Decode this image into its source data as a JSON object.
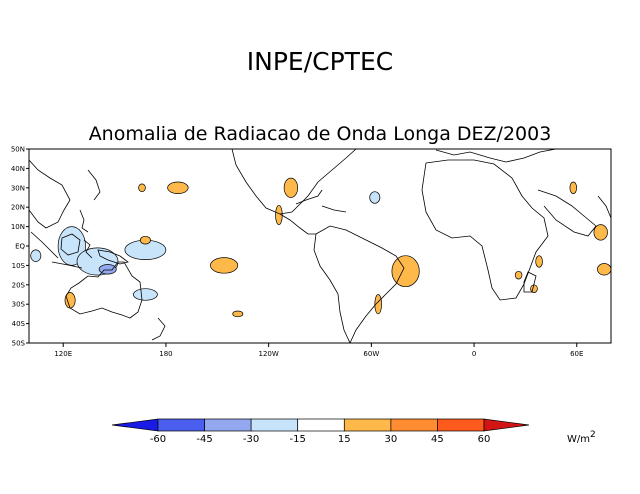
{
  "chart_data": {
    "type": "heatmap",
    "header": "INPE/CPTEC",
    "title": "Anomalia de Radiacao de Onda Longa DEZ/2003",
    "x_ticks": [
      "120E",
      "180",
      "120W",
      "60W",
      "0",
      "60E"
    ],
    "x_tick_lon": [
      120,
      180,
      240,
      300,
      360,
      420
    ],
    "y_ticks": [
      "50N",
      "40N",
      "30N",
      "20N",
      "10N",
      "EQ",
      "10S",
      "20S",
      "30S",
      "40S",
      "50S"
    ],
    "y_tick_lat": [
      50,
      40,
      30,
      20,
      10,
      0,
      -10,
      -20,
      -30,
      -40,
      -50
    ],
    "lon_range": [
      100,
      440
    ],
    "lat_range": [
      -50,
      50
    ],
    "colorbar": {
      "levels": [
        -60,
        -45,
        -30,
        -15,
        15,
        30,
        45,
        60
      ],
      "labels": [
        "-60",
        "-45",
        "-30",
        "-15",
        "15",
        "30",
        "45",
        "60"
      ],
      "colors": [
        "#1a1ae6",
        "#4a5ef0",
        "#94a8f0",
        "#c8e4fa",
        "#ffffff",
        "#ffb84a",
        "#ff8c30",
        "#ff5a1e",
        "#d21414"
      ],
      "unit": "W/m",
      "unit_exp": "2"
    },
    "anomalies": [
      {
        "id": "indonesia-neg-1",
        "lon": 125,
        "lat": 0,
        "rlon": 8,
        "rlat": 10,
        "value": -20
      },
      {
        "id": "indonesia-neg-2",
        "lon": 140,
        "lat": -8,
        "rlon": 12,
        "rlat": 7,
        "value": -25
      },
      {
        "id": "png-strong-neg",
        "lon": 146,
        "lat": -12,
        "rlon": 5,
        "rlat": 2.5,
        "value": -40
      },
      {
        "id": "pacific-neg-1",
        "lon": 168,
        "lat": -2,
        "rlon": 12,
        "rlat": 5,
        "value": -20
      },
      {
        "id": "pacific-neg-2",
        "lon": 168,
        "lat": -25,
        "rlon": 7,
        "rlat": 3,
        "value": -20
      },
      {
        "id": "indian-ocean-neg",
        "lon": 104,
        "lat": -5,
        "rlon": 3,
        "rlat": 3,
        "value": -20
      },
      {
        "id": "atlantic-neg",
        "lon": 302,
        "lat": 25,
        "rlon": 3,
        "rlat": 3,
        "value": -20
      },
      {
        "id": "australia-pos",
        "lon": 124,
        "lat": -28,
        "rlon": 3,
        "rlat": 4,
        "value": 25
      },
      {
        "id": "pacific-pos-n",
        "lon": 187,
        "lat": 30,
        "rlon": 6,
        "rlat": 3,
        "value": 20
      },
      {
        "id": "pacific-pos-a",
        "lon": 166,
        "lat": 30,
        "rlon": 2,
        "rlat": 2,
        "value": 20
      },
      {
        "id": "pacific-pos-b",
        "lon": 168,
        "lat": 3,
        "rlon": 3,
        "rlat": 2,
        "value": 20
      },
      {
        "id": "pacific-pos-s",
        "lon": 214,
        "lat": -10,
        "rlon": 8,
        "rlat": 4,
        "value": 20
      },
      {
        "id": "pacific-pos-far-s",
        "lon": 222,
        "lat": -35,
        "rlon": 3,
        "rlat": 1.5,
        "value": 20
      },
      {
        "id": "mexico-pos",
        "lon": 253,
        "lat": 30,
        "rlon": 4,
        "rlat": 5,
        "value": 25
      },
      {
        "id": "central-america-pos",
        "lon": 246,
        "lat": 16,
        "rlon": 2,
        "rlat": 5,
        "value": 20
      },
      {
        "id": "brazil-pos",
        "lon": 320,
        "lat": -13,
        "rlon": 8,
        "rlat": 8,
        "value": 25
      },
      {
        "id": "argentina-pos",
        "lon": 304,
        "lat": -30,
        "rlon": 2,
        "rlat": 5,
        "value": 20
      },
      {
        "id": "arabia-pos",
        "lon": 418,
        "lat": 30,
        "rlon": 2,
        "rlat": 3,
        "value": 20
      },
      {
        "id": "africa-pos-e",
        "lon": 434,
        "lat": 7,
        "rlon": 4,
        "rlat": 4,
        "value": 20
      },
      {
        "id": "madagascar-pos",
        "lon": 436,
        "lat": -12,
        "rlon": 4,
        "rlat": 3,
        "value": 20
      },
      {
        "id": "mozambique-pos-1",
        "lon": 398,
        "lat": -8,
        "rlon": 2,
        "rlat": 3,
        "value": 20
      },
      {
        "id": "mozambique-pos-2",
        "lon": 395,
        "lat": -22,
        "rlon": 2,
        "rlat": 2,
        "value": 20
      },
      {
        "id": "africa-sw-pos",
        "lon": 386,
        "lat": -15,
        "rlon": 2,
        "rlat": 2,
        "value": 20
      }
    ]
  }
}
